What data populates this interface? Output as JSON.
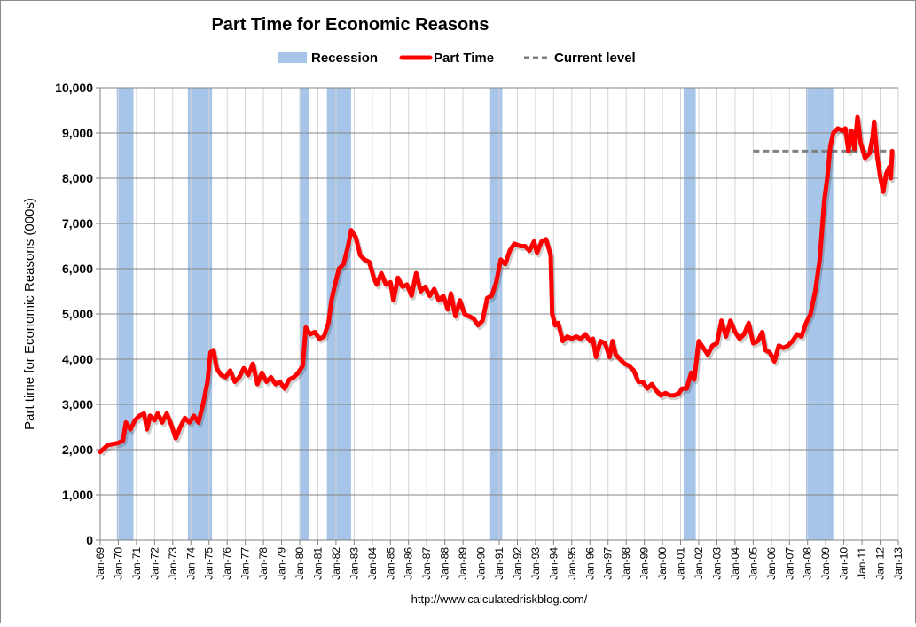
{
  "chart_data": {
    "type": "line",
    "title": "Part Time for Economic Reasons",
    "ylabel": "Part time for Economic Reasons (000s)",
    "xlabel": "",
    "source": "http://www.calculatedriskblog.com/",
    "ylim": [
      0,
      10000
    ],
    "yticks": [
      0,
      1000,
      2000,
      3000,
      4000,
      5000,
      6000,
      7000,
      8000,
      9000,
      10000
    ],
    "ytick_labels": [
      "0",
      "1,000",
      "2,000",
      "3,000",
      "4,000",
      "5,000",
      "6,000",
      "7,000",
      "8,000",
      "9,000",
      "10,000"
    ],
    "xlim": [
      "1969-01",
      "2013-01"
    ],
    "xtick_labels": [
      "Jan-69",
      "Jan-70",
      "Jan-71",
      "Jan-72",
      "Jan-73",
      "Jan-74",
      "Jan-75",
      "Jan-76",
      "Jan-77",
      "Jan-78",
      "Jan-79",
      "Jan-80",
      "Jan-81",
      "Jan-82",
      "Jan-83",
      "Jan-84",
      "Jan-85",
      "Jan-86",
      "Jan-87",
      "Jan-88",
      "Jan-89",
      "Jan-90",
      "Jan-91",
      "Jan-92",
      "Jan-93",
      "Jan-94",
      "Jan-95",
      "Jan-96",
      "Jan-97",
      "Jan-98",
      "Jan-99",
      "Jan-00",
      "Jan-01",
      "Jan-02",
      "Jan-03",
      "Jan-04",
      "Jan-05",
      "Jan-06",
      "Jan-07",
      "Jan-08",
      "Jan-09",
      "Jan-10",
      "Jan-11",
      "Jan-12",
      "Jan-13"
    ],
    "grid": true,
    "legend_position": "top",
    "legend": [
      {
        "name": "Recession",
        "kind": "band",
        "color": "#a6c5e8"
      },
      {
        "name": "Part Time",
        "kind": "line",
        "color": "#ff0000"
      },
      {
        "name": "Current level",
        "kind": "dashed",
        "color": "#808080"
      }
    ],
    "recessions": [
      [
        "1969-12",
        "1970-11"
      ],
      [
        "1973-11",
        "1975-03"
      ],
      [
        "1980-01",
        "1980-07"
      ],
      [
        "1981-07",
        "1982-11"
      ],
      [
        "1990-07",
        "1991-03"
      ],
      [
        "2001-03",
        "2001-11"
      ],
      [
        "2007-12",
        "2009-06"
      ]
    ],
    "current_level": {
      "value": 8600,
      "from": "2005-01",
      "to": "2012-09"
    },
    "series": [
      {
        "name": "Part Time",
        "color": "#ff0000",
        "points": [
          [
            "1969-01",
            1950
          ],
          [
            "1969-06",
            2100
          ],
          [
            "1970-01",
            2150
          ],
          [
            "1970-04",
            2200
          ],
          [
            "1970-06",
            2600
          ],
          [
            "1970-09",
            2450
          ],
          [
            "1970-12",
            2650
          ],
          [
            "1971-03",
            2750
          ],
          [
            "1971-06",
            2800
          ],
          [
            "1971-08",
            2450
          ],
          [
            "1971-10",
            2750
          ],
          [
            "1972-01",
            2650
          ],
          [
            "1972-03",
            2800
          ],
          [
            "1972-06",
            2600
          ],
          [
            "1972-09",
            2800
          ],
          [
            "1972-12",
            2550
          ],
          [
            "1973-03",
            2250
          ],
          [
            "1973-06",
            2500
          ],
          [
            "1973-09",
            2700
          ],
          [
            "1973-12",
            2600
          ],
          [
            "1974-03",
            2750
          ],
          [
            "1974-06",
            2600
          ],
          [
            "1974-09",
            3000
          ],
          [
            "1974-12",
            3500
          ],
          [
            "1975-02",
            4150
          ],
          [
            "1975-04",
            4200
          ],
          [
            "1975-06",
            3800
          ],
          [
            "1975-09",
            3650
          ],
          [
            "1975-12",
            3600
          ],
          [
            "1976-03",
            3750
          ],
          [
            "1976-06",
            3500
          ],
          [
            "1976-09",
            3600
          ],
          [
            "1976-12",
            3800
          ],
          [
            "1977-03",
            3650
          ],
          [
            "1977-06",
            3900
          ],
          [
            "1977-09",
            3450
          ],
          [
            "1977-12",
            3700
          ],
          [
            "1978-03",
            3500
          ],
          [
            "1978-06",
            3600
          ],
          [
            "1978-09",
            3450
          ],
          [
            "1978-12",
            3500
          ],
          [
            "1979-03",
            3350
          ],
          [
            "1979-06",
            3550
          ],
          [
            "1979-09",
            3600
          ],
          [
            "1979-12",
            3700
          ],
          [
            "1980-03",
            3850
          ],
          [
            "1980-05",
            4700
          ],
          [
            "1980-08",
            4550
          ],
          [
            "1980-11",
            4600
          ],
          [
            "1981-02",
            4450
          ],
          [
            "1981-05",
            4500
          ],
          [
            "1981-08",
            4800
          ],
          [
            "1981-10",
            5300
          ],
          [
            "1981-12",
            5600
          ],
          [
            "1982-03",
            6000
          ],
          [
            "1982-06",
            6100
          ],
          [
            "1982-09",
            6500
          ],
          [
            "1982-11",
            6850
          ],
          [
            "1983-02",
            6700
          ],
          [
            "1983-05",
            6300
          ],
          [
            "1983-08",
            6200
          ],
          [
            "1983-11",
            6150
          ],
          [
            "1984-02",
            5800
          ],
          [
            "1984-04",
            5650
          ],
          [
            "1984-07",
            5900
          ],
          [
            "1984-10",
            5650
          ],
          [
            "1985-01",
            5700
          ],
          [
            "1985-03",
            5300
          ],
          [
            "1985-06",
            5800
          ],
          [
            "1985-09",
            5600
          ],
          [
            "1985-12",
            5650
          ],
          [
            "1986-03",
            5400
          ],
          [
            "1986-06",
            5900
          ],
          [
            "1986-09",
            5500
          ],
          [
            "1986-12",
            5600
          ],
          [
            "1987-03",
            5400
          ],
          [
            "1987-06",
            5550
          ],
          [
            "1987-09",
            5300
          ],
          [
            "1987-12",
            5400
          ],
          [
            "1988-03",
            5100
          ],
          [
            "1988-05",
            5450
          ],
          [
            "1988-08",
            4950
          ],
          [
            "1988-11",
            5300
          ],
          [
            "1989-02",
            5000
          ],
          [
            "1989-05",
            4950
          ],
          [
            "1989-08",
            4900
          ],
          [
            "1989-11",
            4750
          ],
          [
            "1990-02",
            4850
          ],
          [
            "1990-05",
            5350
          ],
          [
            "1990-08",
            5400
          ],
          [
            "1990-11",
            5700
          ],
          [
            "1991-02",
            6200
          ],
          [
            "1991-05",
            6100
          ],
          [
            "1991-08",
            6400
          ],
          [
            "1991-11",
            6550
          ],
          [
            "1992-03",
            6500
          ],
          [
            "1992-06",
            6500
          ],
          [
            "1992-09",
            6400
          ],
          [
            "1992-12",
            6600
          ],
          [
            "1993-02",
            6350
          ],
          [
            "1993-05",
            6600
          ],
          [
            "1993-08",
            6650
          ],
          [
            "1993-11",
            6300
          ],
          [
            "1993-12",
            5000
          ],
          [
            "1994-02",
            4750
          ],
          [
            "1994-04",
            4800
          ],
          [
            "1994-07",
            4400
          ],
          [
            "1994-10",
            4500
          ],
          [
            "1995-01",
            4450
          ],
          [
            "1995-04",
            4500
          ],
          [
            "1995-07",
            4450
          ],
          [
            "1995-10",
            4550
          ],
          [
            "1996-01",
            4400
          ],
          [
            "1996-03",
            4450
          ],
          [
            "1996-05",
            4050
          ],
          [
            "1996-08",
            4400
          ],
          [
            "1996-11",
            4350
          ],
          [
            "1997-02",
            4050
          ],
          [
            "1997-04",
            4400
          ],
          [
            "1997-06",
            4100
          ],
          [
            "1997-09",
            4000
          ],
          [
            "1997-12",
            3900
          ],
          [
            "1998-03",
            3850
          ],
          [
            "1998-06",
            3750
          ],
          [
            "1998-09",
            3500
          ],
          [
            "1998-12",
            3500
          ],
          [
            "1999-03",
            3350
          ],
          [
            "1999-06",
            3450
          ],
          [
            "1999-09",
            3300
          ],
          [
            "1999-12",
            3200
          ],
          [
            "2000-03",
            3250
          ],
          [
            "2000-06",
            3200
          ],
          [
            "2000-09",
            3200
          ],
          [
            "2000-12",
            3250
          ],
          [
            "2001-02",
            3350
          ],
          [
            "2001-05",
            3350
          ],
          [
            "2001-08",
            3700
          ],
          [
            "2001-10",
            3550
          ],
          [
            "2002-01",
            4400
          ],
          [
            "2002-04",
            4250
          ],
          [
            "2002-07",
            4100
          ],
          [
            "2002-10",
            4300
          ],
          [
            "2003-01",
            4350
          ],
          [
            "2003-04",
            4850
          ],
          [
            "2003-07",
            4500
          ],
          [
            "2003-10",
            4850
          ],
          [
            "2004-01",
            4600
          ],
          [
            "2004-04",
            4450
          ],
          [
            "2004-07",
            4550
          ],
          [
            "2004-10",
            4800
          ],
          [
            "2005-01",
            4350
          ],
          [
            "2005-04",
            4400
          ],
          [
            "2005-07",
            4600
          ],
          [
            "2005-09",
            4200
          ],
          [
            "2005-12",
            4150
          ],
          [
            "2006-03",
            3950
          ],
          [
            "2006-06",
            4300
          ],
          [
            "2006-09",
            4250
          ],
          [
            "2006-12",
            4300
          ],
          [
            "2007-03",
            4400
          ],
          [
            "2007-06",
            4550
          ],
          [
            "2007-09",
            4500
          ],
          [
            "2007-12",
            4800
          ],
          [
            "2008-03",
            5000
          ],
          [
            "2008-06",
            5500
          ],
          [
            "2008-09",
            6200
          ],
          [
            "2008-12",
            7500
          ],
          [
            "2009-02",
            8000
          ],
          [
            "2009-04",
            8700
          ],
          [
            "2009-06",
            9000
          ],
          [
            "2009-09",
            9100
          ],
          [
            "2009-12",
            9050
          ],
          [
            "2010-02",
            9100
          ],
          [
            "2010-04",
            8600
          ],
          [
            "2010-06",
            9050
          ],
          [
            "2010-08",
            8650
          ],
          [
            "2010-10",
            9350
          ],
          [
            "2010-12",
            8800
          ],
          [
            "2011-03",
            8450
          ],
          [
            "2011-06",
            8550
          ],
          [
            "2011-08",
            8900
          ],
          [
            "2011-09",
            9250
          ],
          [
            "2011-11",
            8500
          ],
          [
            "2012-01",
            8050
          ],
          [
            "2012-03",
            7700
          ],
          [
            "2012-05",
            8100
          ],
          [
            "2012-07",
            8250
          ],
          [
            "2012-08",
            8000
          ],
          [
            "2012-09",
            8600
          ]
        ]
      }
    ]
  }
}
